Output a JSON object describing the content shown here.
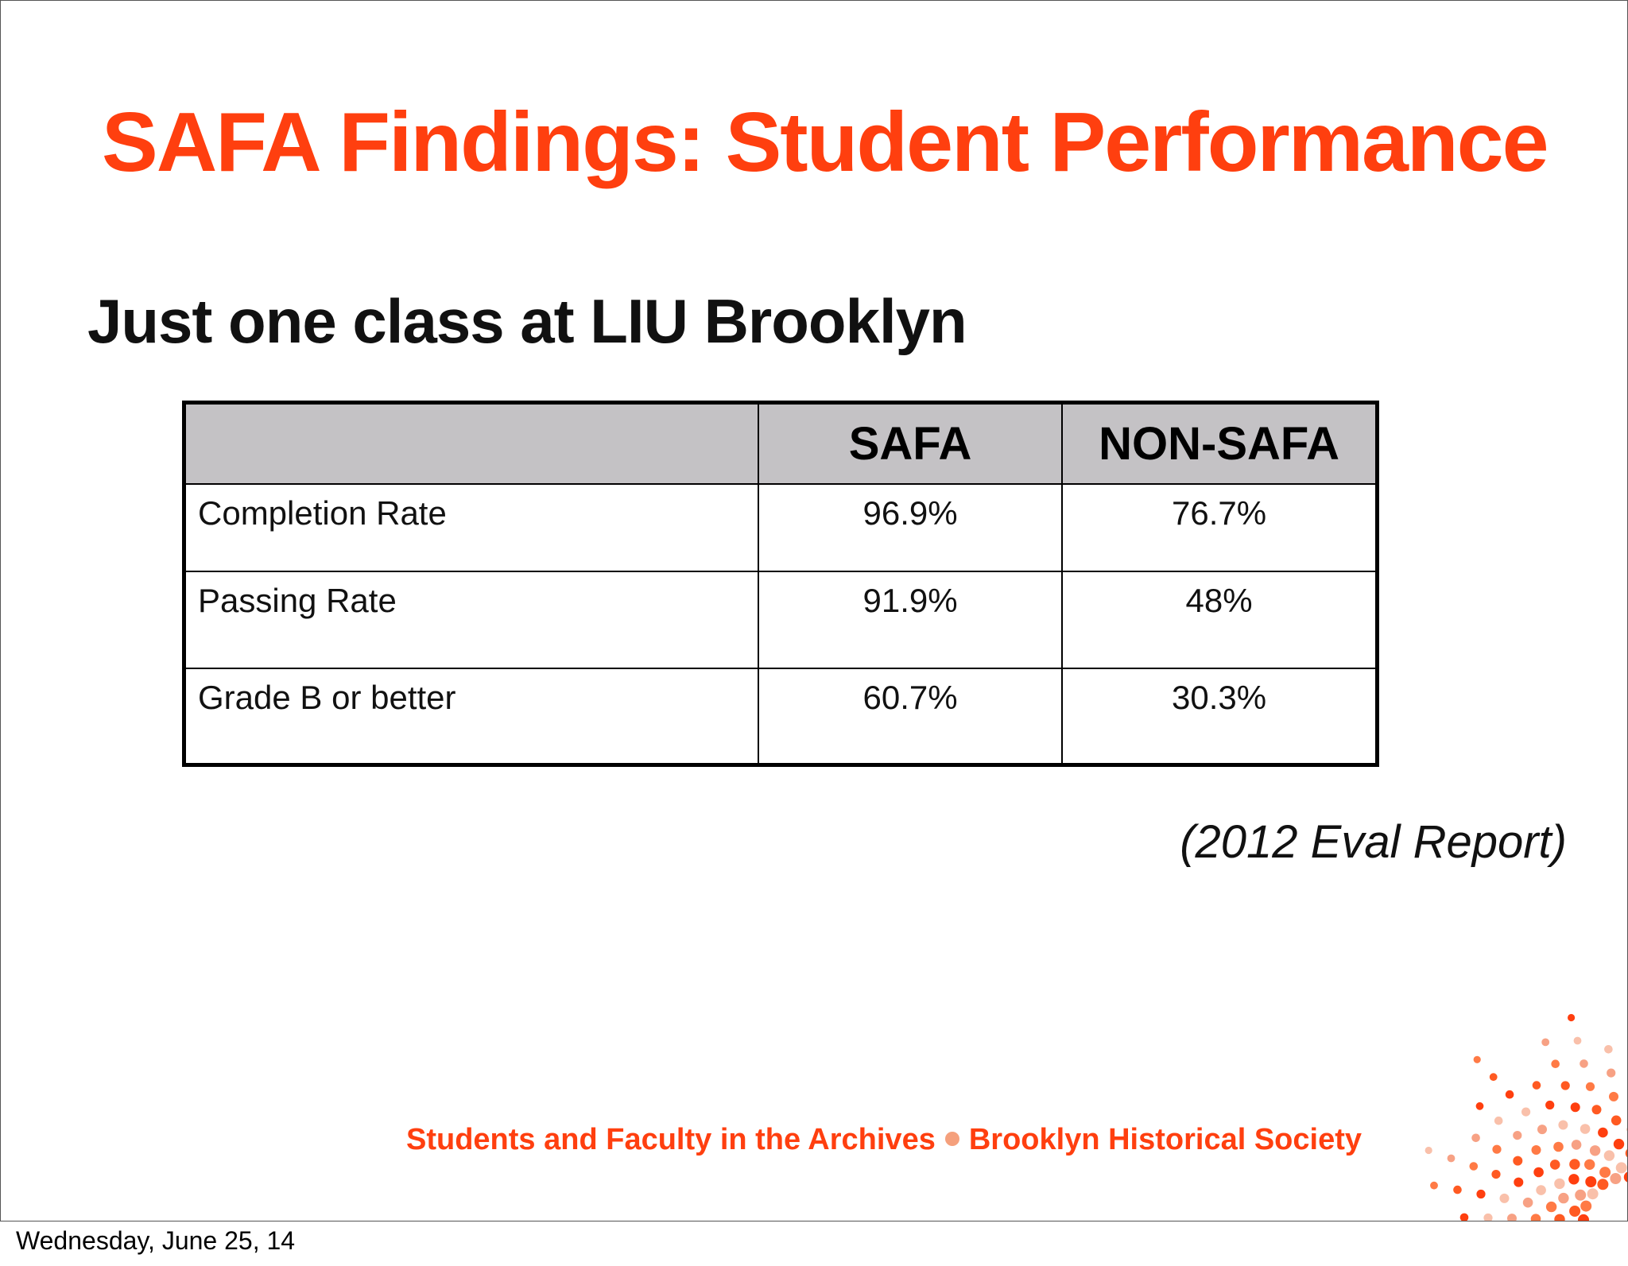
{
  "slide": {
    "title": "SAFA Findings: Student Performance",
    "subtitle": "Just one class at LIU Brooklyn",
    "table": {
      "headers": [
        "",
        "SAFA",
        "NON-SAFA"
      ],
      "rows": [
        {
          "label": "Completion Rate",
          "safa": "96.9%",
          "non_safa": "76.7%"
        },
        {
          "label": "Passing Rate",
          "safa": "91.9%",
          "non_safa": "48%"
        },
        {
          "label": "Grade B or better",
          "safa": "60.7%",
          "non_safa": "30.3%"
        }
      ]
    },
    "citation": "(2012 Eval Report)",
    "footer": {
      "left": "Students and Faculty in the Archives",
      "right": "Brooklyn Historical Society"
    },
    "colors": {
      "accent": "#ff3f0f",
      "header_fill": "#c4c2c5"
    },
    "logo_icon": "dot-burst-logo-icon"
  },
  "date_label": "Wednesday, June 25, 14"
}
